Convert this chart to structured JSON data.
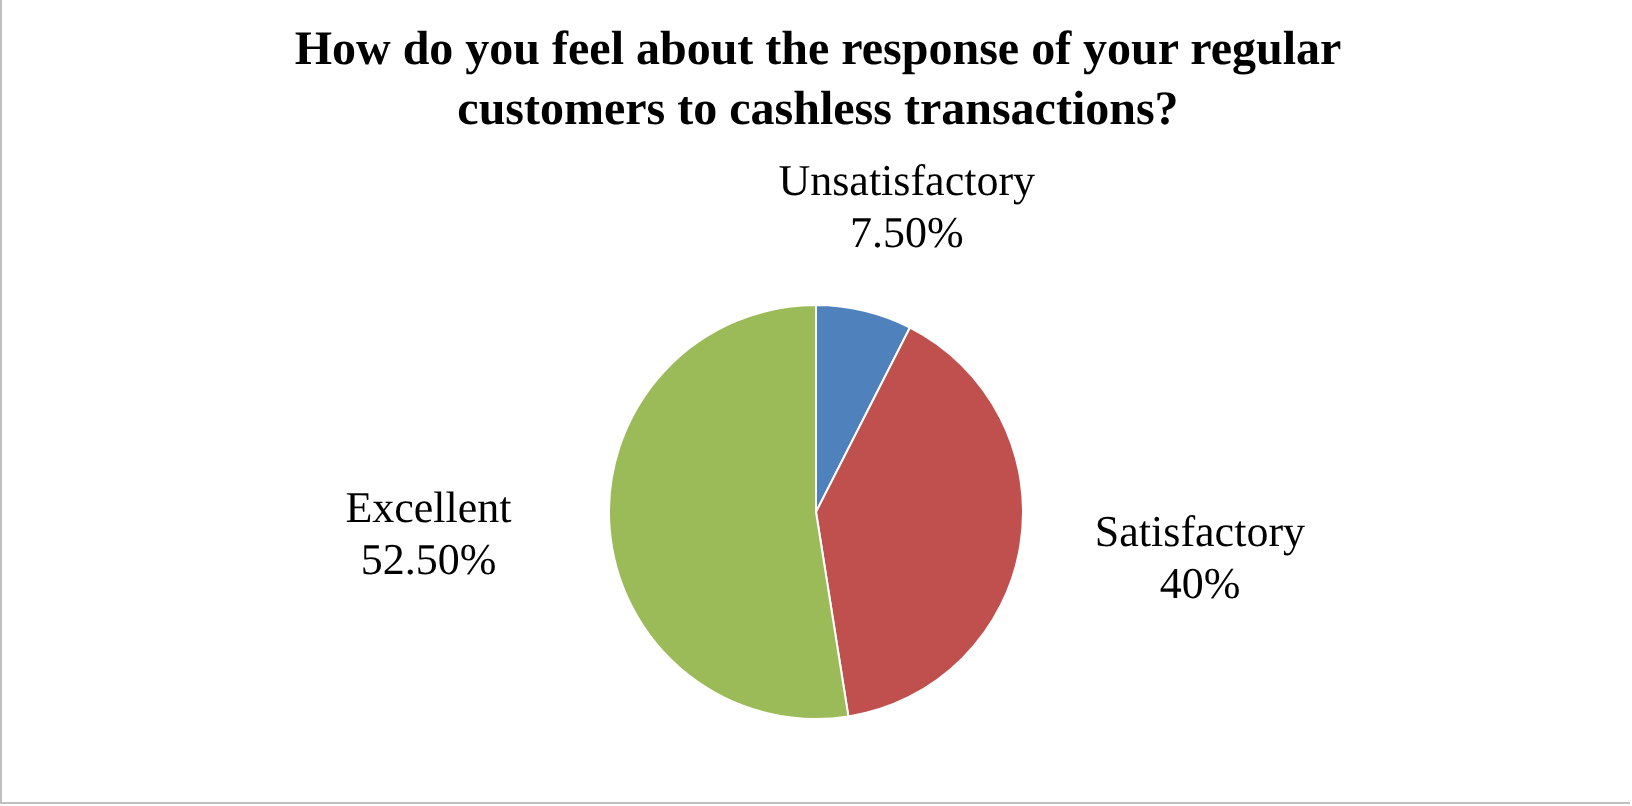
{
  "chart_data": {
    "type": "pie",
    "title": "How do you feel about the response of your regular customers to cashless transactions?",
    "categories": [
      "Unsatisfactory",
      "Satisfactory",
      "Excellent"
    ],
    "values": [
      7.5,
      40,
      52.5
    ],
    "value_labels": [
      "7.50%",
      "40%",
      "52.50%"
    ],
    "colors": [
      "#4f81bd",
      "#c0504d",
      "#9bbb59"
    ],
    "legend": false
  }
}
